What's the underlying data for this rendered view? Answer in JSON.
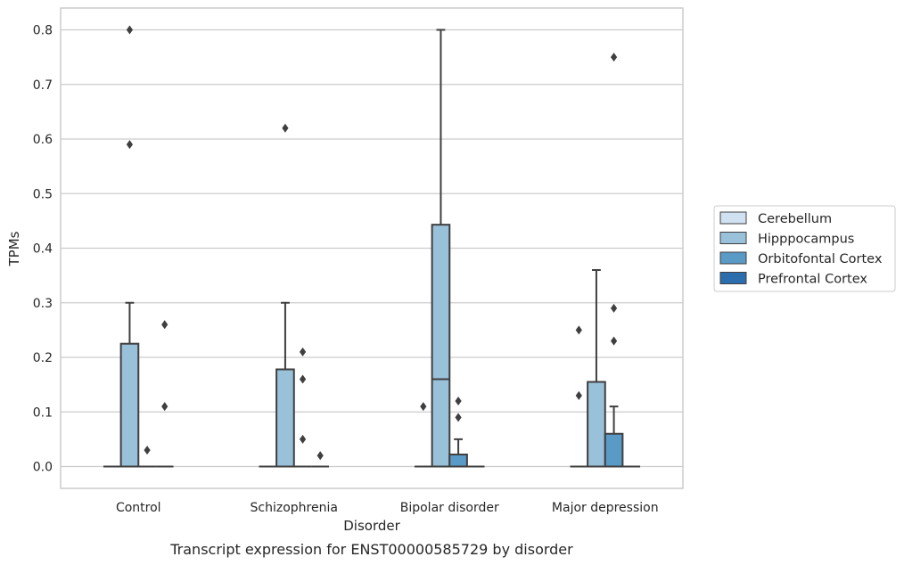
{
  "chart_data": {
    "type": "box",
    "caption": "Transcript expression for ENST00000585729 by disorder",
    "xlabel": "Disorder",
    "ylabel": "TPMs",
    "ylim": [
      -0.04,
      0.84
    ],
    "yticks": [
      0.0,
      0.1,
      0.2,
      0.3,
      0.4,
      0.5,
      0.6,
      0.7,
      0.8
    ],
    "grid": true,
    "legend_position": "right",
    "categories": [
      "Control",
      "Schizophrenia",
      "Bipolar disorder",
      "Major depression"
    ],
    "series": [
      {
        "name": "Cerebellum",
        "color": "#d0e1f2",
        "boxes": [
          {
            "q1": 0,
            "median": 0,
            "q3": 0,
            "whisker_low": 0,
            "whisker_high": 0,
            "outliers": []
          },
          {
            "q1": 0,
            "median": 0,
            "q3": 0,
            "whisker_low": 0,
            "whisker_high": 0,
            "outliers": []
          },
          {
            "q1": 0,
            "median": 0,
            "q3": 0,
            "whisker_low": 0,
            "whisker_high": 0,
            "outliers": [
              0.11
            ]
          },
          {
            "q1": 0,
            "median": 0,
            "q3": 0,
            "whisker_low": 0,
            "whisker_high": 0,
            "outliers": [
              0.13,
              0.25
            ]
          }
        ]
      },
      {
        "name": "Hipppocampus",
        "color": "#9ac1da",
        "boxes": [
          {
            "q1": 0,
            "median": 0,
            "q3": 0.225,
            "whisker_low": 0,
            "whisker_high": 0.3,
            "outliers": [
              0.59,
              0.8
            ]
          },
          {
            "q1": 0,
            "median": 0,
            "q3": 0.178,
            "whisker_low": 0,
            "whisker_high": 0.3,
            "outliers": [
              0.62
            ]
          },
          {
            "q1": 0,
            "median": 0.16,
            "q3": 0.443,
            "whisker_low": 0,
            "whisker_high": 0.8,
            "outliers": []
          },
          {
            "q1": 0,
            "median": 0,
            "q3": 0.155,
            "whisker_low": 0,
            "whisker_high": 0.36,
            "outliers": []
          }
        ]
      },
      {
        "name": "Orbitofontal Cortex",
        "color": "#5a9ac6",
        "boxes": [
          {
            "q1": 0,
            "median": 0,
            "q3": 0,
            "whisker_low": 0,
            "whisker_high": 0,
            "outliers": [
              0.03
            ]
          },
          {
            "q1": 0,
            "median": 0,
            "q3": 0,
            "whisker_low": 0,
            "whisker_high": 0,
            "outliers": [
              0.05,
              0.16,
              0.21
            ]
          },
          {
            "q1": 0,
            "median": 0,
            "q3": 0.022,
            "whisker_low": 0,
            "whisker_high": 0.05,
            "outliers": [
              0.09,
              0.12
            ]
          },
          {
            "q1": 0,
            "median": 0,
            "q3": 0.06,
            "whisker_low": 0,
            "whisker_high": 0.11,
            "outliers": [
              0.23,
              0.29,
              0.75
            ]
          }
        ]
      },
      {
        "name": "Prefrontal Cortex",
        "color": "#2c6ead",
        "boxes": [
          {
            "q1": 0,
            "median": 0,
            "q3": 0,
            "whisker_low": 0,
            "whisker_high": 0,
            "outliers": [
              0.11,
              0.26
            ]
          },
          {
            "q1": 0,
            "median": 0,
            "q3": 0,
            "whisker_low": 0,
            "whisker_high": 0,
            "outliers": [
              0.02
            ]
          },
          {
            "q1": 0,
            "median": 0,
            "q3": 0,
            "whisker_low": 0,
            "whisker_high": 0,
            "outliers": []
          },
          {
            "q1": 0,
            "median": 0,
            "q3": 0,
            "whisker_low": 0,
            "whisker_high": 0,
            "outliers": []
          }
        ]
      }
    ]
  }
}
